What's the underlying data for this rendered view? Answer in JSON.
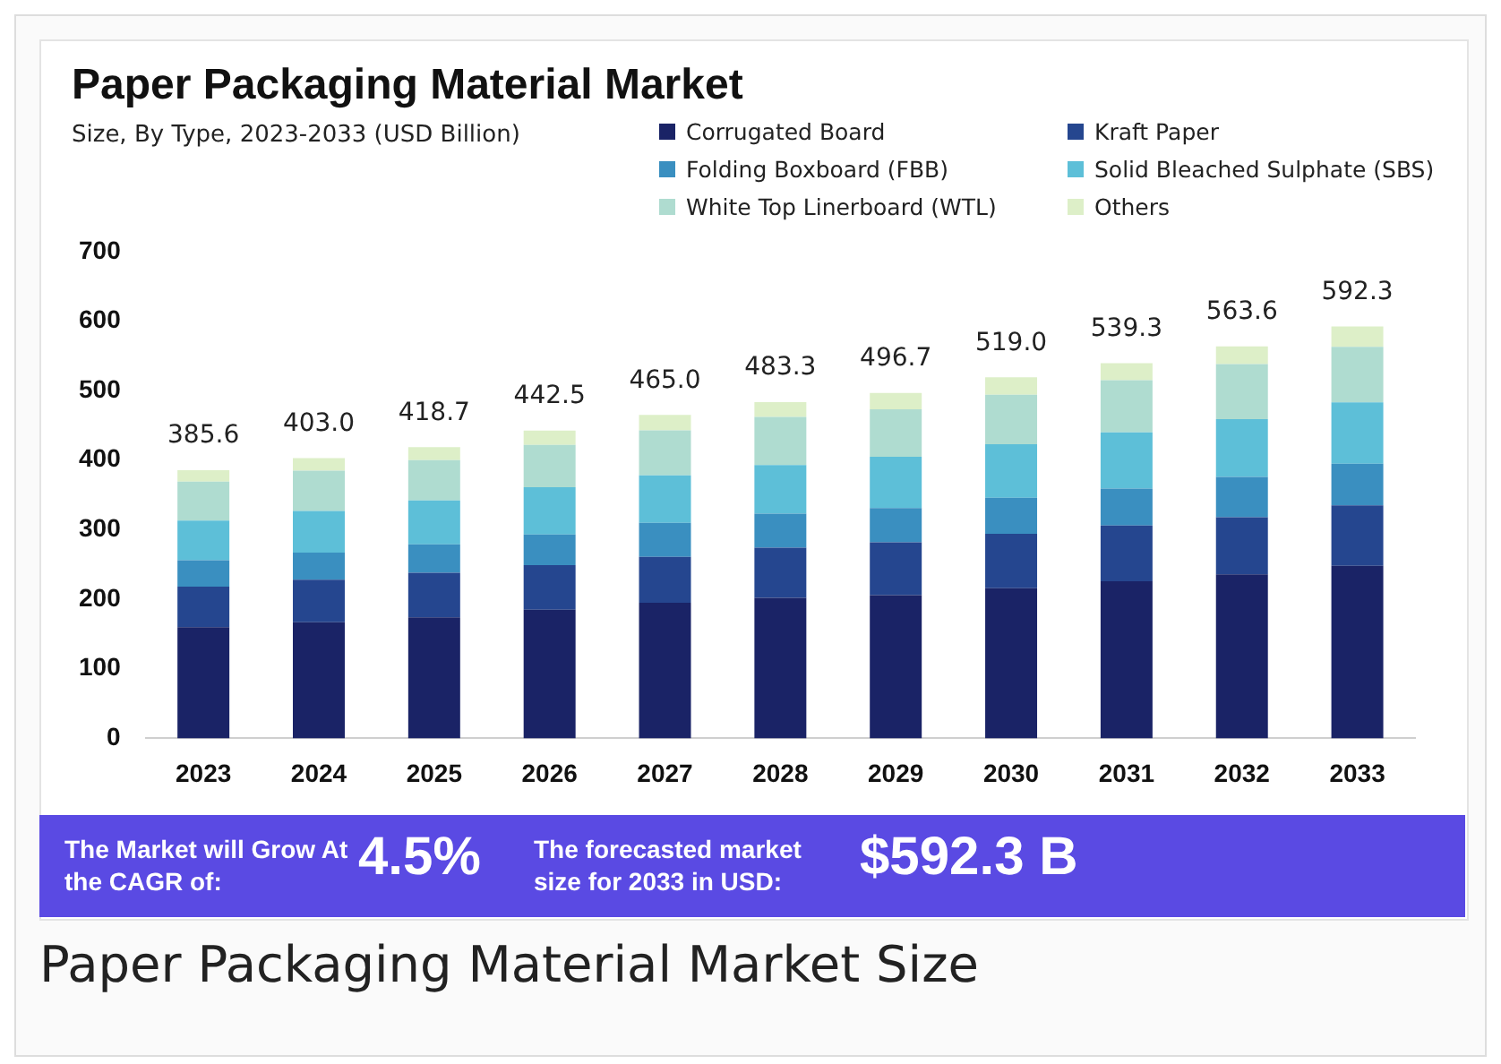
{
  "chart_data": {
    "type": "bar",
    "stacked": true,
    "title": "Paper Packaging Material Market",
    "subtitle": "Size, By Type, 2023-2033 (USD Billion)",
    "categories": [
      "2023",
      "2024",
      "2025",
      "2026",
      "2027",
      "2028",
      "2029",
      "2030",
      "2031",
      "2032",
      "2033"
    ],
    "series": [
      {
        "name": "Corrugated Board",
        "color": "#1a2366",
        "values": [
          160,
          167,
          174,
          185,
          195,
          202,
          206,
          216,
          226,
          236,
          248
        ]
      },
      {
        "name": "Kraft Paper",
        "color": "#25468f",
        "values": [
          58,
          61,
          64,
          64,
          66,
          72,
          76,
          78,
          80,
          82,
          87
        ]
      },
      {
        "name": "Folding Boxboard (FBB)",
        "color": "#3a8fc0",
        "values": [
          38,
          39,
          41,
          44,
          49,
          49,
          49,
          52,
          53,
          58,
          60
        ]
      },
      {
        "name": "Solid Bleached Sulphate (SBS)",
        "color": "#5dbfd8",
        "values": [
          57,
          60,
          63,
          68,
          68,
          70,
          74,
          77,
          81,
          83,
          88
        ]
      },
      {
        "name": "White Top Linerboard (WTL)",
        "color": "#afdcd0",
        "values": [
          56,
          58,
          58,
          61,
          65,
          69,
          68,
          71,
          75,
          79,
          80
        ]
      },
      {
        "name": "Others",
        "color": "#ddefc8",
        "values": [
          16.6,
          18,
          18.7,
          20.5,
          22,
          21.3,
          23.7,
          25,
          24.3,
          25.6,
          29.3
        ]
      }
    ],
    "totals": [
      "385.6",
      "403.0",
      "418.7",
      "442.5",
      "465.0",
      "483.3",
      "496.7",
      "519.0",
      "539.3",
      "563.6",
      "592.3"
    ],
    "ylim": [
      0,
      700
    ],
    "yticks": [
      0,
      100,
      200,
      300,
      400,
      500,
      600,
      700
    ],
    "grid": false,
    "legend": "top right",
    "annotations": [
      "The Market will Grow At the CAGR of:",
      "4.5%",
      "The forecasted market size for 2033 in USD:",
      "$592.3 B",
      "Paper Packaging Material Market Size"
    ]
  }
}
